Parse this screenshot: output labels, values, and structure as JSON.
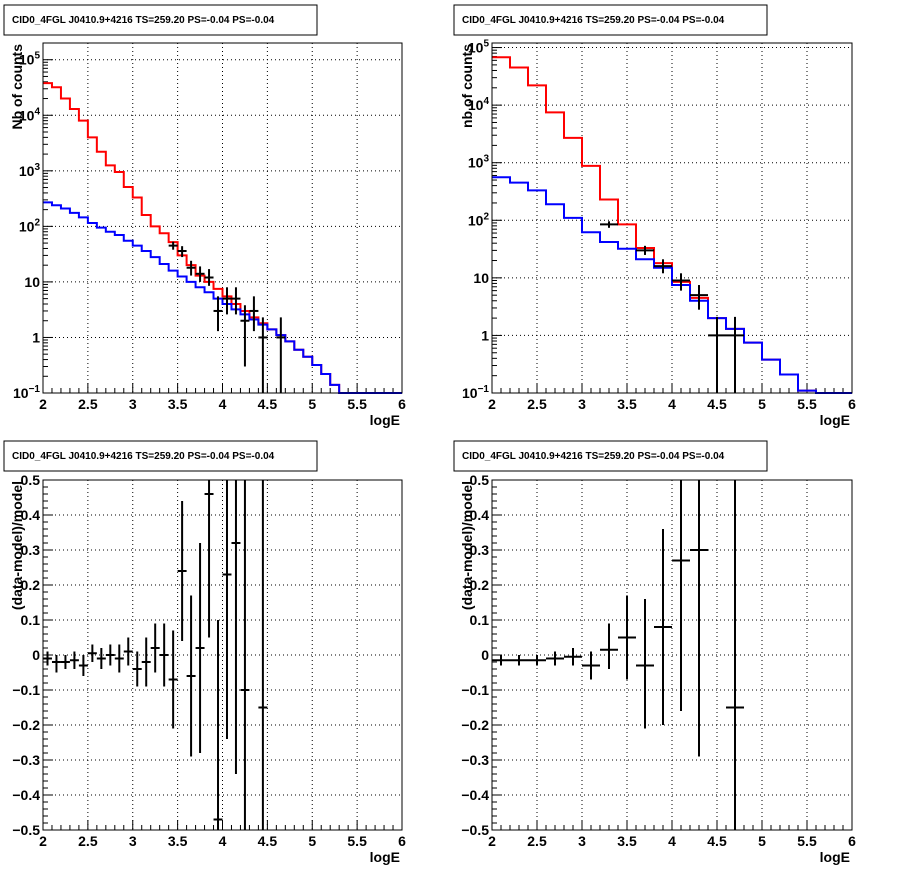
{
  "chart_data": [
    {
      "type": "line",
      "title": "CID0_4FGL J0410.9+4216 TS=259.20 PS=-0.04 PS=-0.04",
      "xlabel": "logE",
      "ylabel": "Nb of counts",
      "xlim": [
        2,
        6
      ],
      "ylim": [
        0.1,
        200000
      ],
      "yscale": "log",
      "grid": true,
      "x_ticks": [
        "2",
        "2.5",
        "3",
        "3.5",
        "4",
        "4.5",
        "5",
        "5.5",
        "6"
      ],
      "y_ticks": [
        {
          "v": 0.1,
          "base": "10",
          "exp": "−1"
        },
        {
          "v": 1,
          "base": "1",
          "exp": ""
        },
        {
          "v": 10,
          "base": "10",
          "exp": ""
        },
        {
          "v": 100,
          "base": "10",
          "exp": "2"
        },
        {
          "v": 1000,
          "base": "10",
          "exp": "3"
        },
        {
          "v": 10000,
          "base": "10",
          "exp": "4"
        },
        {
          "v": 100000,
          "base": "10",
          "exp": "5"
        }
      ],
      "hist_edges": [
        2.0,
        2.1,
        2.2,
        2.3,
        2.4,
        2.5,
        2.6,
        2.7,
        2.8,
        2.9,
        3.0,
        3.1,
        3.2,
        3.3,
        3.4,
        3.5,
        3.6,
        3.7,
        3.8,
        3.9,
        4.0,
        4.1,
        4.2,
        4.3,
        4.4,
        4.5,
        4.6,
        4.7,
        4.8,
        4.9,
        5.0,
        5.1,
        5.2,
        5.3,
        5.4,
        5.5,
        5.6,
        5.7,
        5.8,
        5.9,
        6.0
      ],
      "series": [
        {
          "color": "#ff0000",
          "values": [
            38000,
            32000,
            20000,
            13000,
            8000,
            4000,
            2200,
            1250,
            950,
            510,
            330,
            160,
            100,
            75,
            52,
            30,
            20,
            13,
            10,
            7.5,
            5.5,
            4,
            3,
            2.3,
            1.8,
            1.4,
            1.1,
            0.85,
            0.6,
            0.45,
            0.32,
            0.22,
            0.14,
            0.1,
            0.1,
            0.1,
            0.1,
            0.1,
            0.1,
            0.1
          ]
        },
        {
          "color": "#0000ff",
          "values": [
            270,
            240,
            210,
            175,
            145,
            115,
            95,
            80,
            70,
            55,
            45,
            36,
            28,
            21,
            16,
            12.5,
            10,
            8,
            6.5,
            5,
            4,
            3.2,
            2.6,
            2.1,
            1.7,
            1.4,
            1.1,
            0.85,
            0.6,
            0.45,
            0.32,
            0.22,
            0.14,
            0.1,
            0.1,
            0.1,
            0.1,
            0.1,
            0.1,
            0.1
          ]
        }
      ],
      "points": [
        {
          "x": 3.45,
          "y": 45,
          "lo": 38,
          "hi": 53,
          "xerr": 0.05
        },
        {
          "x": 3.55,
          "y": 36,
          "lo": 28,
          "hi": 44,
          "xerr": 0.05
        },
        {
          "x": 3.65,
          "y": 18,
          "lo": 13,
          "hi": 24,
          "xerr": 0.05
        },
        {
          "x": 3.75,
          "y": 14,
          "lo": 10,
          "hi": 19,
          "xerr": 0.05
        },
        {
          "x": 3.85,
          "y": 12,
          "lo": 8.5,
          "hi": 17,
          "xerr": 0.05
        },
        {
          "x": 3.95,
          "y": 3,
          "lo": 1.3,
          "hi": 5.5,
          "xerr": 0.05
        },
        {
          "x": 4.05,
          "y": 5,
          "lo": 2.6,
          "hi": 8,
          "xerr": 0.05
        },
        {
          "x": 4.15,
          "y": 5,
          "lo": 2.6,
          "hi": 8,
          "xerr": 0.05
        },
        {
          "x": 4.25,
          "y": 2,
          "lo": 0.3,
          "hi": 3.8,
          "xerr": 0.05
        },
        {
          "x": 4.35,
          "y": 3,
          "lo": 1.3,
          "hi": 5.5,
          "xerr": 0.05
        },
        {
          "x": 4.45,
          "y": 1,
          "lo": 0.1,
          "hi": 2.3,
          "xerr": 0.05
        },
        {
          "x": 4.65,
          "y": 1,
          "lo": 0.1,
          "hi": 2.3,
          "xerr": 0.05
        }
      ]
    },
    {
      "type": "line",
      "title": "CID0_4FGL J0410.9+4216 TS=259.20 PS=-0.04 PS=-0.04",
      "xlabel": "logE",
      "ylabel": "nb of counts",
      "xlim": [
        2,
        6
      ],
      "ylim": [
        0.1,
        120000
      ],
      "yscale": "log",
      "grid": true,
      "x_ticks": [
        "2",
        "2.5",
        "3",
        "3.5",
        "4",
        "4.5",
        "5",
        "5.5",
        "6"
      ],
      "y_ticks": [
        {
          "v": 0.1,
          "base": "10",
          "exp": "−1"
        },
        {
          "v": 1,
          "base": "1",
          "exp": ""
        },
        {
          "v": 10,
          "base": "10",
          "exp": ""
        },
        {
          "v": 100,
          "base": "10",
          "exp": "2"
        },
        {
          "v": 1000,
          "base": "10",
          "exp": "3"
        },
        {
          "v": 10000,
          "base": "10",
          "exp": "4"
        },
        {
          "v": 100000,
          "base": "10",
          "exp": "5"
        }
      ],
      "hist_edges": [
        2.0,
        2.2,
        2.4,
        2.6,
        2.8,
        3.0,
        3.2,
        3.4,
        3.6,
        3.8,
        4.0,
        4.2,
        4.4,
        4.6,
        4.8,
        5.0,
        5.2,
        5.4,
        5.6,
        5.8,
        6.0
      ],
      "series": [
        {
          "color": "#ff0000",
          "values": [
            68000,
            45000,
            22000,
            7500,
            2700,
            880,
            230,
            85,
            33,
            18,
            8.5,
            4.5,
            2,
            1.3,
            0.75,
            0.38,
            0.21,
            0.11,
            0.1,
            0.1
          ]
        },
        {
          "color": "#0000ff",
          "values": [
            560,
            450,
            330,
            190,
            110,
            62,
            42,
            32,
            21,
            15,
            7.5,
            4,
            2,
            1.3,
            0.75,
            0.38,
            0.21,
            0.11,
            0.1,
            0.1
          ]
        }
      ],
      "points": [
        {
          "x": 3.3,
          "y": 85,
          "lo": 74,
          "hi": 96,
          "xerr": 0.1
        },
        {
          "x": 3.7,
          "y": 30,
          "lo": 25,
          "hi": 36,
          "xerr": 0.1
        },
        {
          "x": 3.9,
          "y": 16,
          "lo": 12,
          "hi": 21,
          "xerr": 0.1
        },
        {
          "x": 4.1,
          "y": 9,
          "lo": 6,
          "hi": 12,
          "xerr": 0.1
        },
        {
          "x": 4.3,
          "y": 5,
          "lo": 2.8,
          "hi": 7.5,
          "xerr": 0.1
        },
        {
          "x": 4.5,
          "y": 1,
          "lo": 0.1,
          "hi": 2.1,
          "xerr": 0.1
        },
        {
          "x": 4.7,
          "y": 1,
          "lo": 0.1,
          "hi": 2.1,
          "xerr": 0.1
        }
      ]
    },
    {
      "type": "scatter",
      "title": "CID0_4FGL J0410.9+4216 TS=259.20 PS=-0.04 PS=-0.04",
      "xlabel": "logE",
      "ylabel": "(data-model)/model",
      "xlim": [
        2,
        6
      ],
      "ylim": [
        -0.5,
        0.5
      ],
      "yscale": "linear",
      "grid": true,
      "x_ticks": [
        "2",
        "2.5",
        "3",
        "3.5",
        "4",
        "4.5",
        "5",
        "5.5",
        "6"
      ],
      "y_ticks": [
        {
          "v": -0.5,
          "base": "−0.5",
          "exp": ""
        },
        {
          "v": -0.4,
          "base": "−0.4",
          "exp": ""
        },
        {
          "v": -0.3,
          "base": "−0.3",
          "exp": ""
        },
        {
          "v": -0.2,
          "base": "−0.2",
          "exp": ""
        },
        {
          "v": -0.1,
          "base": "−0.1",
          "exp": ""
        },
        {
          "v": 0,
          "base": "0",
          "exp": ""
        },
        {
          "v": 0.1,
          "base": "0.1",
          "exp": ""
        },
        {
          "v": 0.2,
          "base": "0.2",
          "exp": ""
        },
        {
          "v": 0.3,
          "base": "0.3",
          "exp": ""
        },
        {
          "v": 0.4,
          "base": "0.4",
          "exp": ""
        },
        {
          "v": 0.5,
          "base": "0.5",
          "exp": ""
        }
      ],
      "points": [
        {
          "x": 2.05,
          "y": -0.01,
          "lo": -0.03,
          "hi": 0.01,
          "xerr": 0.05
        },
        {
          "x": 2.15,
          "y": -0.02,
          "lo": -0.05,
          "hi": 0.0,
          "xerr": 0.05
        },
        {
          "x": 2.25,
          "y": -0.02,
          "lo": -0.04,
          "hi": 0.0,
          "xerr": 0.05
        },
        {
          "x": 2.35,
          "y": -0.015,
          "lo": -0.04,
          "hi": 0.01,
          "xerr": 0.05
        },
        {
          "x": 2.45,
          "y": -0.03,
          "lo": -0.06,
          "hi": 0.0,
          "xerr": 0.05
        },
        {
          "x": 2.55,
          "y": 0.005,
          "lo": -0.02,
          "hi": 0.03,
          "xerr": 0.05
        },
        {
          "x": 2.65,
          "y": -0.01,
          "lo": -0.04,
          "hi": 0.02,
          "xerr": 0.05
        },
        {
          "x": 2.75,
          "y": 0.0,
          "lo": -0.03,
          "hi": 0.03,
          "xerr": 0.05
        },
        {
          "x": 2.85,
          "y": -0.01,
          "lo": -0.05,
          "hi": 0.03,
          "xerr": 0.05
        },
        {
          "x": 2.95,
          "y": 0.01,
          "lo": -0.03,
          "hi": 0.05,
          "xerr": 0.05
        },
        {
          "x": 3.05,
          "y": -0.04,
          "lo": -0.09,
          "hi": 0.01,
          "xerr": 0.05
        },
        {
          "x": 3.15,
          "y": -0.02,
          "lo": -0.09,
          "hi": 0.05,
          "xerr": 0.05
        },
        {
          "x": 3.25,
          "y": 0.02,
          "lo": -0.05,
          "hi": 0.09,
          "xerr": 0.05
        },
        {
          "x": 3.35,
          "y": 0.0,
          "lo": -0.09,
          "hi": 0.09,
          "xerr": 0.05
        },
        {
          "x": 3.45,
          "y": -0.07,
          "lo": -0.21,
          "hi": 0.07,
          "xerr": 0.05
        },
        {
          "x": 3.55,
          "y": 0.24,
          "lo": 0.04,
          "hi": 0.44,
          "xerr": 0.05
        },
        {
          "x": 3.65,
          "y": -0.06,
          "lo": -0.29,
          "hi": 0.17,
          "xerr": 0.05
        },
        {
          "x": 3.75,
          "y": 0.02,
          "lo": -0.28,
          "hi": 0.32,
          "xerr": 0.05
        },
        {
          "x": 3.85,
          "y": 0.46,
          "lo": 0.05,
          "hi": 0.5,
          "xerr": 0.05
        },
        {
          "x": 3.95,
          "y": -0.47,
          "lo": -0.5,
          "hi": 0.1,
          "xerr": 0.05
        },
        {
          "x": 4.05,
          "y": 0.23,
          "lo": -0.24,
          "hi": 0.5,
          "xerr": 0.05
        },
        {
          "x": 4.15,
          "y": 0.32,
          "lo": -0.34,
          "hi": 0.5,
          "xerr": 0.05
        },
        {
          "x": 4.25,
          "y": -0.1,
          "lo": -0.5,
          "hi": 0.5,
          "xerr": 0.05
        },
        {
          "x": 4.45,
          "y": -0.15,
          "lo": -0.5,
          "hi": 0.5,
          "xerr": 0.05
        }
      ]
    },
    {
      "type": "scatter",
      "title": "CID0_4FGL J0410.9+4216 TS=259.20 PS=-0.04 PS=-0.04",
      "xlabel": "logE",
      "ylabel": "(data-model)/model",
      "xlim": [
        2,
        6
      ],
      "ylim": [
        -0.5,
        0.5
      ],
      "yscale": "linear",
      "grid": true,
      "x_ticks": [
        "2",
        "2.5",
        "3",
        "3.5",
        "4",
        "4.5",
        "5",
        "5.5",
        "6"
      ],
      "y_ticks": [
        {
          "v": -0.5,
          "base": "−0.5",
          "exp": ""
        },
        {
          "v": -0.4,
          "base": "−0.4",
          "exp": ""
        },
        {
          "v": -0.3,
          "base": "−0.3",
          "exp": ""
        },
        {
          "v": -0.2,
          "base": "−0.2",
          "exp": ""
        },
        {
          "v": -0.1,
          "base": "−0.1",
          "exp": ""
        },
        {
          "v": 0,
          "base": "0",
          "exp": ""
        },
        {
          "v": 0.1,
          "base": "0.1",
          "exp": ""
        },
        {
          "v": 0.2,
          "base": "0.2",
          "exp": ""
        },
        {
          "v": 0.3,
          "base": "0.3",
          "exp": ""
        },
        {
          "v": 0.4,
          "base": "0.4",
          "exp": ""
        },
        {
          "v": 0.5,
          "base": "0.5",
          "exp": ""
        }
      ],
      "points": [
        {
          "x": 2.1,
          "y": -0.015,
          "lo": -0.03,
          "hi": 0.0,
          "xerr": 0.1
        },
        {
          "x": 2.3,
          "y": -0.015,
          "lo": -0.03,
          "hi": 0.0,
          "xerr": 0.1
        },
        {
          "x": 2.5,
          "y": -0.015,
          "lo": -0.03,
          "hi": 0.0,
          "xerr": 0.1
        },
        {
          "x": 2.7,
          "y": -0.01,
          "lo": -0.03,
          "hi": 0.01,
          "xerr": 0.1
        },
        {
          "x": 2.9,
          "y": -0.005,
          "lo": -0.03,
          "hi": 0.02,
          "xerr": 0.1
        },
        {
          "x": 3.1,
          "y": -0.03,
          "lo": -0.07,
          "hi": 0.01,
          "xerr": 0.1
        },
        {
          "x": 3.3,
          "y": 0.015,
          "lo": -0.04,
          "hi": 0.09,
          "xerr": 0.1
        },
        {
          "x": 3.5,
          "y": 0.05,
          "lo": -0.07,
          "hi": 0.17,
          "xerr": 0.1
        },
        {
          "x": 3.7,
          "y": -0.03,
          "lo": -0.21,
          "hi": 0.16,
          "xerr": 0.1
        },
        {
          "x": 3.9,
          "y": 0.08,
          "lo": -0.2,
          "hi": 0.36,
          "xerr": 0.1
        },
        {
          "x": 4.1,
          "y": 0.27,
          "lo": -0.16,
          "hi": 0.5,
          "xerr": 0.1
        },
        {
          "x": 4.3,
          "y": 0.3,
          "lo": -0.29,
          "hi": 0.5,
          "xerr": 0.1
        },
        {
          "x": 4.7,
          "y": -0.15,
          "lo": -0.5,
          "hi": 0.5,
          "xerr": 0.1
        }
      ]
    }
  ]
}
